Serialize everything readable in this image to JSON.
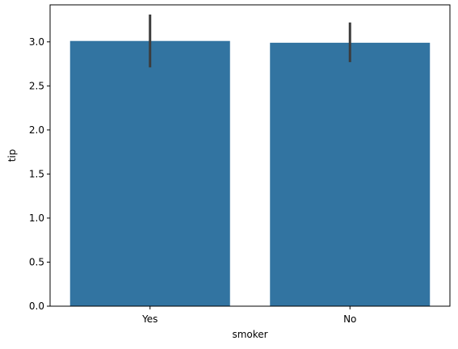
{
  "chart_data": {
    "type": "bar",
    "title": "",
    "xlabel": "smoker",
    "ylabel": "tip",
    "categories": [
      "Yes",
      "No"
    ],
    "values": [
      3.01,
      2.99
    ],
    "error_bars": [
      {
        "low": 2.71,
        "high": 3.31
      },
      {
        "low": 2.77,
        "high": 3.22
      }
    ],
    "ylim": [
      0,
      3.42
    ],
    "yticks": [
      0.0,
      0.5,
      1.0,
      1.5,
      2.0,
      2.5,
      3.0
    ],
    "ytick_labels": [
      "0.0",
      "0.5",
      "1.0",
      "1.5",
      "2.0",
      "2.5",
      "3.0"
    ],
    "grid": false,
    "bar_color": "#3274a1",
    "error_color": "#3c3c3c"
  }
}
